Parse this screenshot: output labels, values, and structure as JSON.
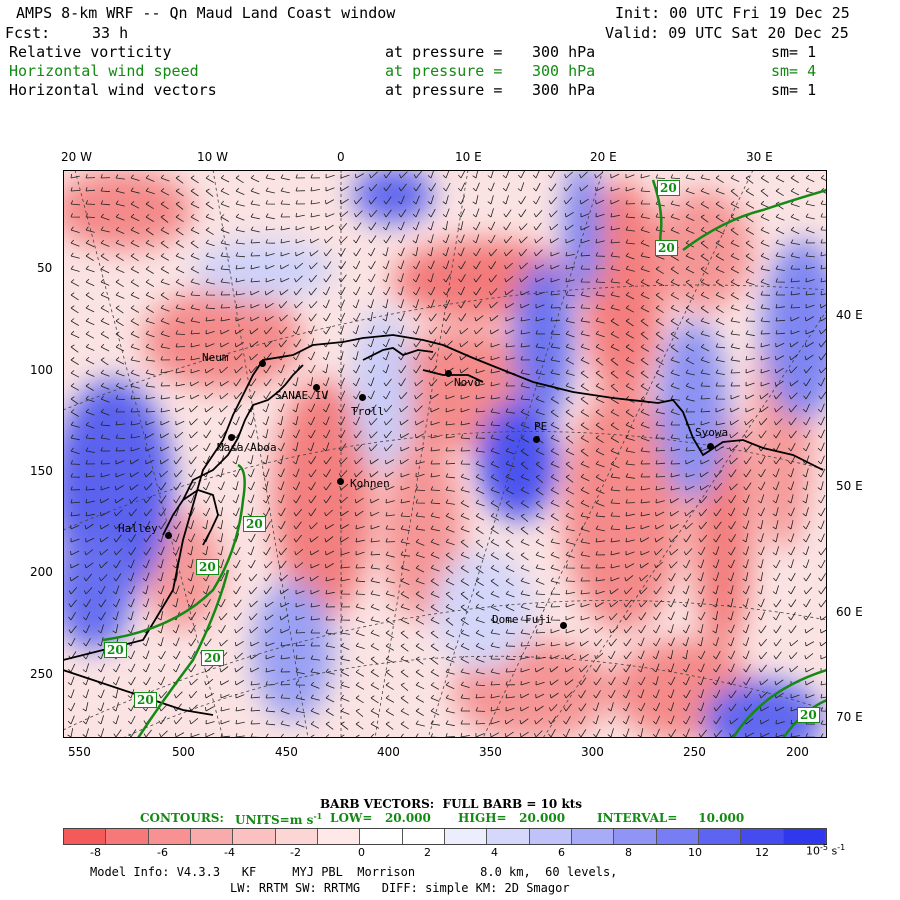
{
  "header": {
    "title": "AMPS 8-km WRF -- Qn Maud Land Coast window",
    "init": "Init: 00 UTC Fri 19 Dec 25",
    "fcst_label": "Fcst:",
    "fcst_value": "33 h",
    "valid": "Valid: 09 UTC Sat 20 Dec 25"
  },
  "fields": [
    {
      "name": "Relative vorticity",
      "level": "at pressure =",
      "value": "300 hPa",
      "sm": "sm= 1",
      "color": "#000000"
    },
    {
      "name": "Horizontal wind speed",
      "level": "at pressure =",
      "value": "300 hPa",
      "sm": "sm= 4",
      "color": "#138a13"
    },
    {
      "name": "Horizontal wind vectors",
      "level": "at pressure =",
      "value": "300 hPa",
      "sm": "sm= 1",
      "color": "#000000"
    }
  ],
  "map": {
    "lon_labels_top": [
      "20 W",
      "10 W",
      "0",
      "10 E",
      "20 E",
      "30 E"
    ],
    "lon_labels_right": [
      "40 E",
      "50 E",
      "60 E",
      "70 E"
    ],
    "y_labels_left": [
      "50",
      "100",
      "150",
      "200",
      "250"
    ],
    "x_labels_bottom": [
      "550",
      "500",
      "450",
      "400",
      "350",
      "300",
      "250",
      "200"
    ],
    "stations": [
      "Neum",
      "SANAE IV",
      "Troll",
      "Novo",
      "PE",
      "Syowa",
      "Masa/Aboa",
      "Kohnen",
      "Halley",
      "Dome Fuji"
    ],
    "contour_labels": [
      "20",
      "20",
      "20",
      "20",
      "20",
      "20",
      "20",
      "20"
    ],
    "colors": {
      "positive": "#3344ee",
      "negative": "#ee4444",
      "contour": "#138a13",
      "coast": "#000000"
    }
  },
  "legend": {
    "barb": "BARB VECTORS:  FULL BARB = 10 kts",
    "contours_label": "CONTOURS:",
    "units": "UNITS=m s",
    "units_exp": "-1",
    "low": "LOW=   20.000",
    "high": "HIGH=   20.000",
    "interval": "INTERVAL=     10.000",
    "colorbar_ticks": [
      "-8",
      "-6",
      "-4",
      "-2",
      "0",
      "2",
      "4",
      "6",
      "8",
      "10",
      "12"
    ],
    "colorbar_unit": "10",
    "colorbar_unit_exp": "-5",
    "colorbar_unit_tail": "s",
    "colorbar_unit_tail_exp": "-1",
    "colorbar_colors": [
      "#f45a5a",
      "#f67878",
      "#f89292",
      "#f9aaaa",
      "#fbc0c0",
      "#fcd5d5",
      "#fee8e8",
      "#ffffff",
      "#ffffff",
      "#ecedfd",
      "#d6d8fb",
      "#c0c3f9",
      "#a8acf7",
      "#9095f5",
      "#777df3",
      "#5d64f1",
      "#444cef",
      "#3038ee"
    ]
  },
  "footer": {
    "line1": "Model Info: V4.3.3   KF     MYJ PBL  Morrison         8.0 km,  60 levels,",
    "line2": "LW: RRTM SW: RRTMG   DIFF: simple KM: 2D Smagor"
  }
}
